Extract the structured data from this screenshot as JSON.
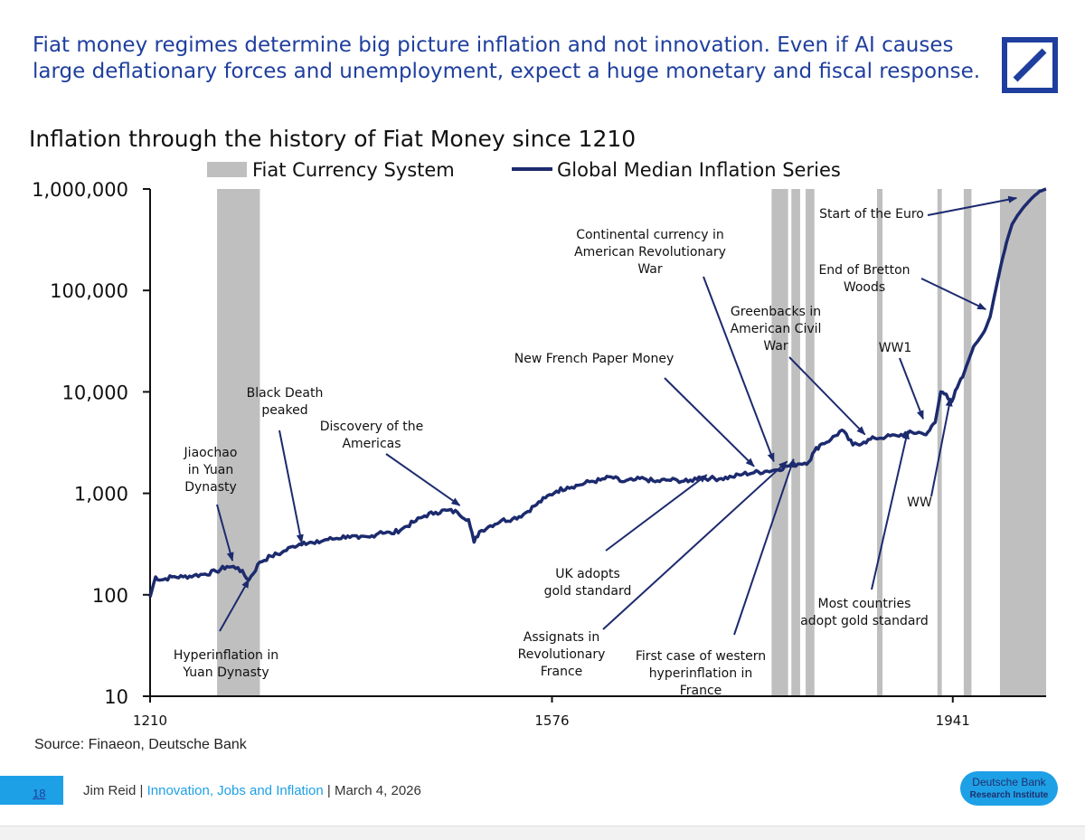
{
  "header": {
    "headline_line1": "Fiat money regimes determine big picture inflation and not innovation. Even if AI causes",
    "headline_line2": "large deflationary forces and unemployment, expect a huge monetary and fiscal response."
  },
  "colors": {
    "brand_blue": "#1f3f9e",
    "series_navy": "#1c2a6e",
    "fiat_gray": "#bfbfbf",
    "accent_cyan": "#1ea0e6"
  },
  "icons": {
    "logo": "deutsche-bank-slash-logo"
  },
  "chart_data": {
    "type": "line",
    "title": "Inflation through the history of Fiat Money since 1210",
    "yscale": "log",
    "ylim": [
      10,
      1000000
    ],
    "xlim": [
      1210,
      2026
    ],
    "y_tick_labels": [
      "1,000,000",
      "100,000",
      "10,000",
      "1,000",
      "100",
      "10"
    ],
    "y_tick_values": [
      1000000,
      100000,
      10000,
      1000,
      100,
      10
    ],
    "x_tick_labels": [
      "1210",
      "1576",
      "1941"
    ],
    "x_tick_values": [
      1210,
      1576,
      1941
    ],
    "grid": false,
    "legend": {
      "placement": "top",
      "entries": [
        "Fiat Currency System",
        "Global Median Inflation Series"
      ]
    },
    "shaded_periods": [
      {
        "start": 1271,
        "end": 1310
      },
      {
        "start": 1776,
        "end": 1791
      },
      {
        "start": 1794,
        "end": 1802
      },
      {
        "start": 1807,
        "end": 1815
      },
      {
        "start": 1872,
        "end": 1877
      },
      {
        "start": 1927,
        "end": 1931
      },
      {
        "start": 1951,
        "end": 1958
      },
      {
        "start": 1984,
        "end": 2026
      }
    ],
    "series": [
      {
        "name": "Global Median Inflation Series",
        "x": [
          1210,
          1215,
          1220,
          1230,
          1240,
          1250,
          1260,
          1270,
          1280,
          1290,
          1300,
          1310,
          1320,
          1330,
          1340,
          1350,
          1360,
          1370,
          1380,
          1390,
          1400,
          1410,
          1420,
          1430,
          1440,
          1450,
          1460,
          1470,
          1480,
          1490,
          1500,
          1505,
          1510,
          1520,
          1530,
          1540,
          1550,
          1560,
          1570,
          1580,
          1590,
          1600,
          1610,
          1620,
          1630,
          1640,
          1650,
          1660,
          1670,
          1680,
          1690,
          1700,
          1710,
          1720,
          1730,
          1740,
          1750,
          1760,
          1770,
          1780,
          1790,
          1800,
          1810,
          1815,
          1820,
          1830,
          1840,
          1850,
          1860,
          1870,
          1880,
          1890,
          1900,
          1910,
          1915,
          1920,
          1925,
          1930,
          1935,
          1940,
          1945,
          1950,
          1955,
          1960,
          1965,
          1970,
          1975,
          1980,
          1985,
          1990,
          1995,
          2000,
          2005,
          2010,
          2015,
          2020,
          2026
        ],
        "values": [
          95,
          150,
          140,
          150,
          150,
          155,
          160,
          170,
          190,
          185,
          140,
          210,
          240,
          260,
          300,
          330,
          320,
          350,
          360,
          380,
          360,
          370,
          420,
          400,
          450,
          520,
          600,
          650,
          680,
          650,
          550,
          330,
          420,
          480,
          540,
          560,
          620,
          750,
          900,
          1050,
          1150,
          1200,
          1300,
          1350,
          1450,
          1300,
          1350,
          1400,
          1300,
          1350,
          1350,
          1300,
          1450,
          1400,
          1400,
          1450,
          1550,
          1600,
          1650,
          1700,
          1850,
          1950,
          2050,
          2600,
          3000,
          3400,
          4200,
          3000,
          3200,
          3500,
          3600,
          3700,
          3900,
          4000,
          3800,
          4200,
          5000,
          10000,
          9500,
          8000,
          11000,
          14000,
          20000,
          28000,
          33000,
          40000,
          55000,
          100000,
          180000,
          300000,
          450000,
          550000,
          650000,
          750000,
          850000,
          950000,
          1000000
        ]
      }
    ],
    "annotations": [
      {
        "text": "Start of the Euro",
        "x": 1999,
        "y": 750000
      },
      {
        "text": "End of Bretton Woods",
        "x": 1971,
        "y": 60000
      },
      {
        "text": "WW1",
        "x": 1914,
        "y": 5000
      },
      {
        "text": "WW",
        "x": 1939,
        "y": 8000
      },
      {
        "text": "Greenbacks in American Civil War",
        "x": 1861,
        "y": 3500
      },
      {
        "text": "Continental currency in American Revolutionary War",
        "x": 1778,
        "y": 1900
      },
      {
        "text": "New French Paper Money",
        "x": 1760,
        "y": 1700
      },
      {
        "text": "Discovery of the Americas",
        "x": 1492,
        "y": 700
      },
      {
        "text": "Black Death peaked",
        "x": 1348,
        "y": 300
      },
      {
        "text": "Jiaochao in Yuan Dynasty",
        "x": 1285,
        "y": 200
      },
      {
        "text": "Hyperinflation in Yuan Dynasty",
        "x": 1300,
        "y": 130
      },
      {
        "text": "UK adopts gold standard",
        "x": 1717,
        "y": 1400
      },
      {
        "text": "Assignats in Revolutionary France",
        "x": 1790,
        "y": 1900
      },
      {
        "text": "First case of western hyperinflation in France",
        "x": 1796,
        "y": 2000
      },
      {
        "text": "Most countries adopt gold standard",
        "x": 1900,
        "y": 3800
      }
    ]
  },
  "source": "Source: Finaeon, Deutsche Bank",
  "footer": {
    "page_number": "18",
    "author": "Jim Reid",
    "sep1": " | ",
    "report": "Innovation, Jobs and Inflation",
    "sep2": " | ",
    "date": "March 4, 2026",
    "badge_line1": "Deutsche Bank",
    "badge_line2": "Research Institute"
  }
}
